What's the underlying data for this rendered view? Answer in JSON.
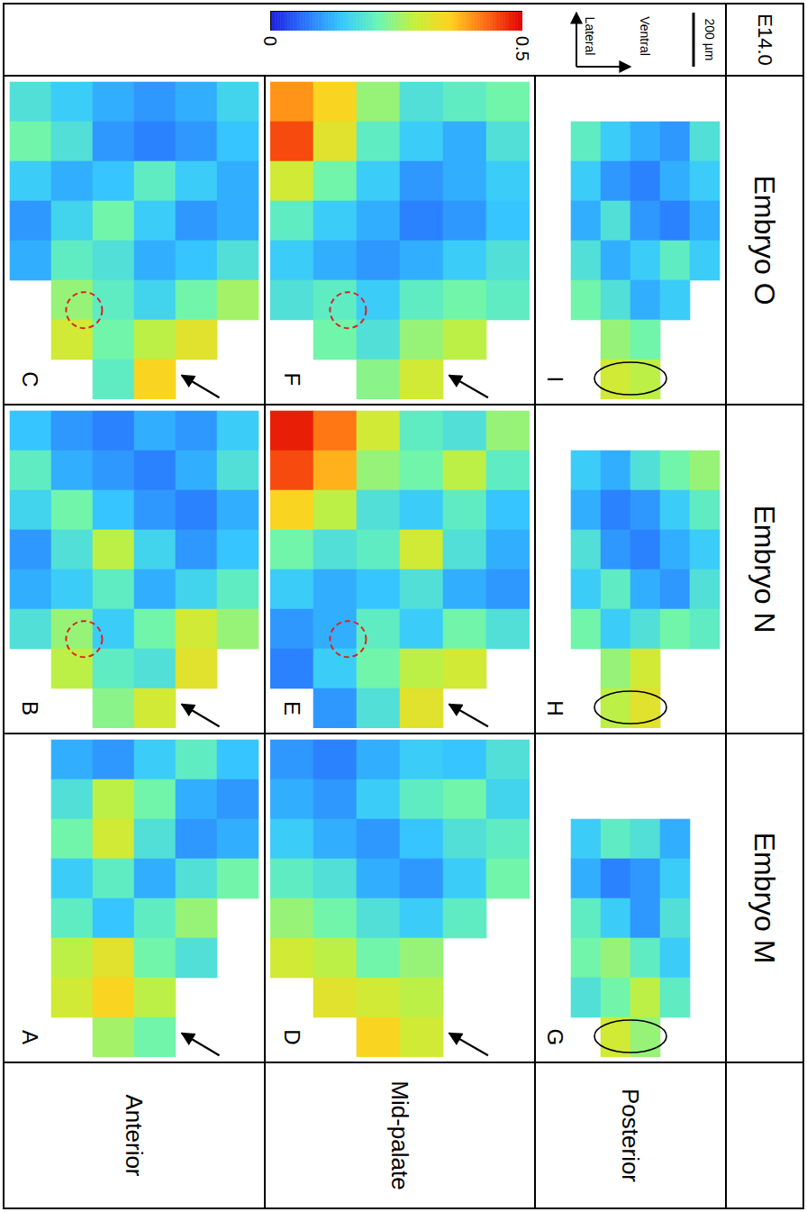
{
  "chart_data": {
    "type": "heatmap",
    "title": "E14.0",
    "colorbar": {
      "range": [
        0,
        0.5
      ],
      "ticks": [
        0,
        0.5
      ]
    },
    "direction_labels": [
      "Lateral",
      "Ventral"
    ],
    "scale_bar": {
      "value": 200,
      "label": "200 µm"
    },
    "embryos": [
      "Embryo O",
      "Embryo N",
      "Embryo M"
    ],
    "regions": [
      "Anterior",
      "Mid-palate",
      "Posterior"
    ],
    "panels": [
      {
        "label": "A",
        "embryo": "Embryo M",
        "region": "Anterior",
        "cells": [
          [
            null,
            0.12,
            0.1,
            0.15,
            0.2,
            0.14
          ],
          [
            null,
            0.18,
            0.28,
            0.22,
            0.12,
            0.1
          ],
          [
            null,
            0.22,
            0.3,
            0.18,
            0.1,
            0.12
          ],
          [
            null,
            0.15,
            0.2,
            0.12,
            0.18,
            0.22
          ],
          [
            null,
            0.2,
            0.14,
            0.2,
            0.25,
            null
          ],
          [
            null,
            0.28,
            0.32,
            0.22,
            0.18,
            null
          ],
          [
            null,
            0.3,
            0.35,
            0.28,
            null,
            null
          ],
          [
            null,
            null,
            0.26,
            0.22,
            null,
            null
          ]
        ]
      },
      {
        "label": "B",
        "embryo": "Embryo N",
        "region": "Anterior",
        "cells": [
          [
            0.14,
            0.1,
            0.08,
            0.12,
            0.1,
            0.15
          ],
          [
            0.2,
            0.12,
            0.1,
            0.08,
            0.12,
            0.18
          ],
          [
            0.16,
            0.22,
            0.14,
            0.1,
            0.08,
            0.12
          ],
          [
            0.1,
            0.18,
            0.28,
            0.16,
            0.1,
            0.14
          ],
          [
            0.12,
            0.15,
            0.2,
            0.12,
            0.16,
            0.2
          ],
          [
            0.18,
            0.25,
            0.15,
            0.22,
            0.3,
            0.25
          ],
          [
            null,
            0.28,
            0.2,
            0.18,
            0.32,
            null
          ],
          [
            null,
            null,
            0.24,
            0.3,
            null,
            null
          ]
        ]
      },
      {
        "label": "C",
        "embryo": "Embryo O",
        "region": "Anterior",
        "cells": [
          [
            0.18,
            0.15,
            0.12,
            0.1,
            0.12,
            0.16
          ],
          [
            0.22,
            0.18,
            0.1,
            0.08,
            0.1,
            0.14
          ],
          [
            0.15,
            0.12,
            0.14,
            0.2,
            0.15,
            0.12
          ],
          [
            0.1,
            0.16,
            0.22,
            0.15,
            0.1,
            0.12
          ],
          [
            0.12,
            0.2,
            0.18,
            0.12,
            0.14,
            0.18
          ],
          [
            null,
            0.25,
            0.2,
            0.16,
            0.22,
            0.26
          ],
          [
            null,
            0.3,
            0.22,
            0.28,
            0.32,
            null
          ],
          [
            null,
            null,
            0.2,
            0.35,
            null,
            null
          ]
        ]
      },
      {
        "label": "D",
        "embryo": "Embryo M",
        "region": "Mid-palate",
        "cells": [
          [
            0.1,
            0.08,
            0.12,
            0.15,
            0.14,
            0.18
          ],
          [
            0.12,
            0.1,
            0.15,
            0.2,
            0.22,
            0.16
          ],
          [
            0.15,
            0.12,
            0.1,
            0.14,
            0.18,
            0.2
          ],
          [
            0.2,
            0.18,
            0.12,
            0.1,
            0.15,
            0.22
          ],
          [
            0.25,
            0.22,
            0.18,
            0.15,
            0.2,
            null
          ],
          [
            0.3,
            0.28,
            0.22,
            0.25,
            null,
            null
          ],
          [
            null,
            0.32,
            0.3,
            0.28,
            null,
            null
          ],
          [
            null,
            null,
            0.35,
            0.3,
            null,
            null
          ]
        ]
      },
      {
        "label": "E",
        "embryo": "Embryo N",
        "region": "Mid-palate",
        "cells": [
          [
            0.48,
            0.42,
            0.3,
            0.2,
            0.18,
            0.25
          ],
          [
            0.45,
            0.38,
            0.25,
            0.22,
            0.28,
            0.2
          ],
          [
            0.35,
            0.28,
            0.18,
            0.15,
            0.2,
            0.14
          ],
          [
            0.22,
            0.18,
            0.2,
            0.3,
            0.18,
            0.12
          ],
          [
            0.15,
            0.12,
            0.14,
            0.18,
            0.12,
            0.1
          ],
          [
            0.1,
            0.12,
            0.2,
            0.15,
            0.22,
            0.18
          ],
          [
            0.08,
            0.15,
            0.22,
            0.28,
            0.3,
            null
          ],
          [
            null,
            0.1,
            0.18,
            0.32,
            null,
            null
          ]
        ]
      },
      {
        "label": "F",
        "embryo": "Embryo O",
        "region": "Mid-palate",
        "cells": [
          [
            0.4,
            0.35,
            0.25,
            0.18,
            0.2,
            0.22
          ],
          [
            0.45,
            0.32,
            0.2,
            0.15,
            0.12,
            0.18
          ],
          [
            0.3,
            0.22,
            0.15,
            0.1,
            0.12,
            0.15
          ],
          [
            0.2,
            0.15,
            0.12,
            0.08,
            0.1,
            0.14
          ],
          [
            0.15,
            0.12,
            0.1,
            0.12,
            0.15,
            0.18
          ],
          [
            0.18,
            0.2,
            0.15,
            0.2,
            0.22,
            0.2
          ],
          [
            null,
            0.22,
            0.18,
            0.25,
            0.28,
            null
          ],
          [
            null,
            null,
            0.24,
            0.3,
            null,
            null
          ]
        ]
      },
      {
        "label": "G",
        "embryo": "Embryo M",
        "region": "Posterior",
        "cells": [
          [
            null,
            null,
            null,
            null,
            null,
            null
          ],
          [
            null,
            null,
            null,
            null,
            null,
            null
          ],
          [
            null,
            0.15,
            0.2,
            0.18,
            0.12,
            null
          ],
          [
            null,
            0.12,
            0.08,
            0.1,
            0.15,
            null
          ],
          [
            null,
            0.2,
            0.15,
            0.1,
            0.18,
            null
          ],
          [
            null,
            0.22,
            0.25,
            0.2,
            0.15,
            null
          ],
          [
            null,
            0.18,
            0.22,
            0.28,
            0.2,
            null
          ],
          [
            null,
            null,
            0.3,
            0.25,
            null,
            null
          ]
        ]
      },
      {
        "label": "H",
        "embryo": "Embryo N",
        "region": "Posterior",
        "cells": [
          [
            null,
            null,
            null,
            null,
            null,
            null
          ],
          [
            null,
            0.15,
            0.12,
            0.18,
            0.22,
            0.25
          ],
          [
            null,
            0.12,
            0.08,
            0.1,
            0.15,
            0.2
          ],
          [
            null,
            0.18,
            0.1,
            0.08,
            0.12,
            0.15
          ],
          [
            null,
            0.15,
            0.2,
            0.12,
            0.1,
            0.18
          ],
          [
            null,
            0.22,
            0.15,
            0.18,
            0.22,
            0.2
          ],
          [
            null,
            null,
            0.25,
            0.3,
            null,
            null
          ],
          [
            null,
            null,
            0.28,
            0.32,
            null,
            null
          ]
        ]
      },
      {
        "label": "I",
        "embryo": "Embryo O",
        "region": "Posterior",
        "cells": [
          [
            null,
            null,
            null,
            null,
            null,
            null
          ],
          [
            null,
            0.2,
            0.15,
            0.12,
            0.1,
            0.18
          ],
          [
            null,
            0.15,
            0.1,
            0.08,
            0.12,
            0.15
          ],
          [
            null,
            0.12,
            0.18,
            0.1,
            0.08,
            0.12
          ],
          [
            null,
            0.18,
            0.12,
            0.15,
            0.2,
            0.15
          ],
          [
            null,
            0.22,
            0.18,
            0.12,
            0.15,
            null
          ],
          [
            null,
            null,
            0.25,
            0.22,
            null,
            null
          ],
          [
            null,
            null,
            0.3,
            0.28,
            null,
            null
          ]
        ]
      }
    ]
  }
}
